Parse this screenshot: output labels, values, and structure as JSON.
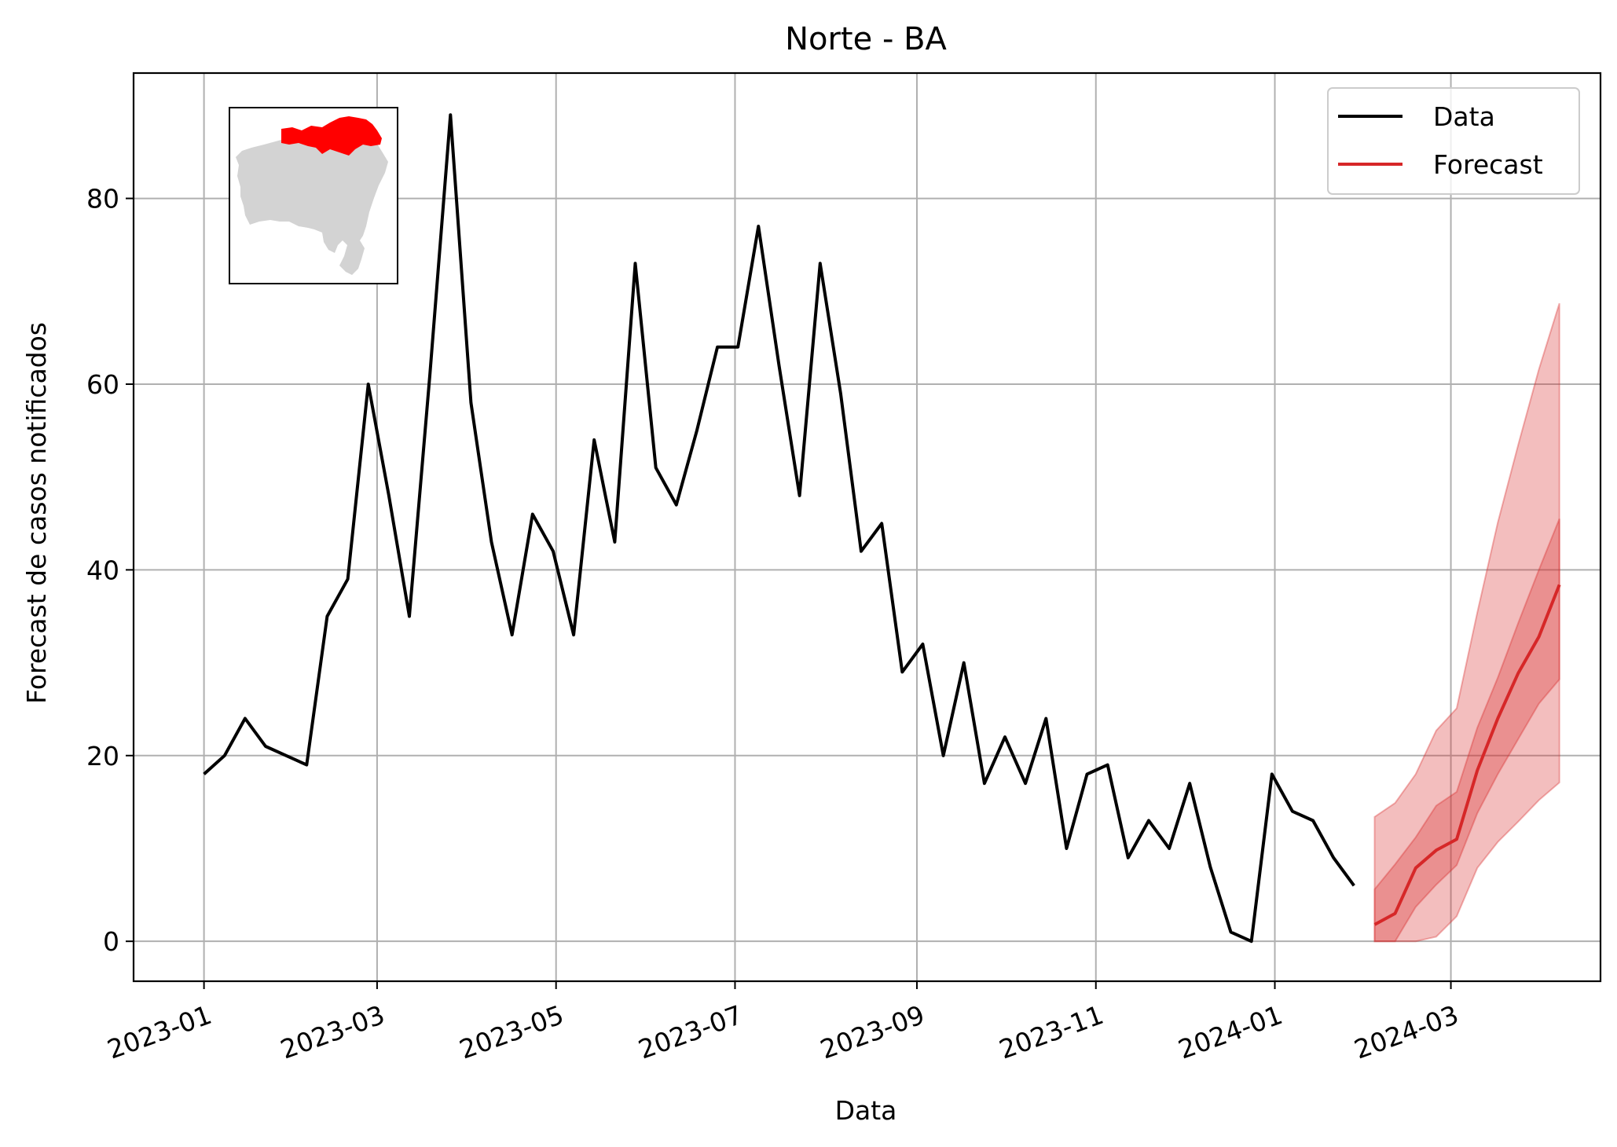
{
  "chart_data": {
    "type": "line",
    "title": "Norte - BA",
    "xlabel": "Data",
    "ylabel": "Forecast de casos notificados",
    "x_ticks": [
      "2023-01",
      "2023-03",
      "2023-05",
      "2023-07",
      "2023-09",
      "2023-11",
      "2024-01",
      "2024-03"
    ],
    "y_ticks": [
      0,
      20,
      40,
      60,
      80
    ],
    "xlim": [
      "2022-12-08",
      "2024-04-21"
    ],
    "ylim": [
      -4.3,
      93.5
    ],
    "grid": true,
    "legend_position": "top-right",
    "inset_map": "Bahia state map with Norte macroregion highlighted",
    "colors": {
      "data": "#000000",
      "forecast": "#d62728",
      "map_region": "#ff0000",
      "map_state": "#d3d3d3"
    },
    "series": [
      {
        "name": "Data",
        "x": [
          "2023-01-01",
          "2023-01-08",
          "2023-01-15",
          "2023-01-22",
          "2023-01-29",
          "2023-02-05",
          "2023-02-12",
          "2023-02-19",
          "2023-02-26",
          "2023-03-05",
          "2023-03-12",
          "2023-03-19",
          "2023-03-26",
          "2023-04-02",
          "2023-04-09",
          "2023-04-16",
          "2023-04-23",
          "2023-04-30",
          "2023-05-07",
          "2023-05-14",
          "2023-05-21",
          "2023-05-28",
          "2023-06-04",
          "2023-06-11",
          "2023-06-18",
          "2023-06-25",
          "2023-07-02",
          "2023-07-09",
          "2023-07-16",
          "2023-07-23",
          "2023-07-30",
          "2023-08-06",
          "2023-08-13",
          "2023-08-20",
          "2023-08-27",
          "2023-09-03",
          "2023-09-10",
          "2023-09-17",
          "2023-09-24",
          "2023-10-01",
          "2023-10-08",
          "2023-10-15",
          "2023-10-22",
          "2023-10-29",
          "2023-11-05",
          "2023-11-12",
          "2023-11-19",
          "2023-11-26",
          "2023-12-03",
          "2023-12-10",
          "2023-12-17",
          "2023-12-24",
          "2023-12-31",
          "2024-01-07",
          "2024-01-14",
          "2024-01-21",
          "2024-01-28"
        ],
        "values": [
          18,
          20,
          24,
          21,
          20,
          19,
          35,
          39,
          60,
          48,
          35,
          61,
          89,
          58,
          43,
          33,
          46,
          42,
          33,
          54,
          43,
          73,
          51,
          47,
          55,
          64,
          64,
          77,
          62,
          48,
          73,
          59,
          42,
          45,
          29,
          32,
          20,
          30,
          17,
          22,
          17,
          24,
          10,
          18,
          19,
          9,
          13,
          10,
          17,
          8,
          1,
          0,
          18,
          14,
          13,
          9,
          6
        ]
      },
      {
        "name": "Forecast",
        "x": [
          "2024-02-04",
          "2024-02-11",
          "2024-02-18",
          "2024-02-25",
          "2024-03-03",
          "2024-03-10",
          "2024-03-17",
          "2024-03-24",
          "2024-03-31",
          "2024-04-07"
        ],
        "values": [
          1.8,
          3.0,
          7.9,
          9.8,
          11.0,
          18.4,
          24.0,
          28.9,
          32.8,
          38.4
        ],
        "lower_50": [
          0.0,
          0.0,
          3.7,
          6.1,
          8.2,
          13.8,
          18.0,
          21.8,
          25.6,
          28.2
        ],
        "upper_50": [
          5.6,
          8.3,
          11.2,
          14.6,
          16.1,
          23.0,
          28.4,
          34.3,
          40.0,
          45.5
        ],
        "lower_90": [
          0.0,
          0.0,
          0.0,
          0.5,
          2.7,
          7.9,
          10.7,
          12.9,
          15.2,
          17.1
        ],
        "upper_90": [
          13.4,
          14.9,
          18.0,
          22.7,
          25.1,
          35.4,
          45.1,
          53.5,
          61.6,
          68.7
        ]
      }
    ]
  }
}
